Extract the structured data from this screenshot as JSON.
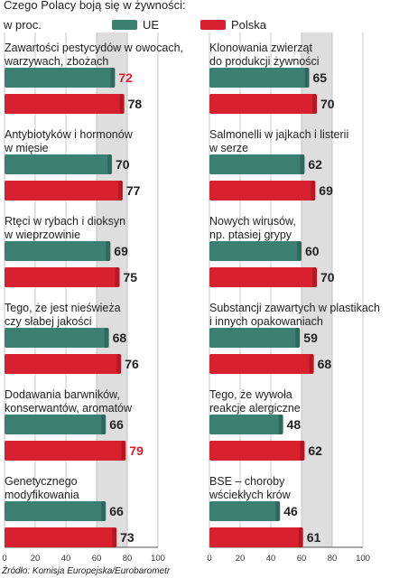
{
  "title": "Czego Polacy boją się w żywności:",
  "unit": "w proc.",
  "source": "Źródło: Komisja Europejska/Eurobarometr",
  "legend": [
    {
      "label": "UE",
      "color": "#3d7f70"
    },
    {
      "label": "Polska",
      "color": "#d8202e"
    }
  ],
  "colors": {
    "ue": "#3d7f70",
    "pl": "#d8202e",
    "highlight": "#d8202e",
    "band": "#dedede",
    "grid": "#bdbdbd"
  },
  "axis_ticks": [
    "0",
    "20",
    "40",
    "60",
    "80",
    "100"
  ],
  "chart_data": {
    "type": "bar",
    "orientation": "horizontal",
    "xlim": [
      0,
      100
    ],
    "series_names": [
      "UE",
      "Polska"
    ],
    "panels": [
      {
        "column": "left",
        "items": [
          {
            "label": [
              "Zawartości pestycydów w owocach,",
              "warzywach, zbożach"
            ],
            "ue": 72,
            "pl": 78,
            "highlight": "ue"
          },
          {
            "label": [
              "Antybiotyków i hormonów",
              "w mięsie"
            ],
            "ue": 70,
            "pl": 77,
            "highlight": null
          },
          {
            "label": [
              "Rtęci w rybach i dioksyn",
              "w wieprzowinie"
            ],
            "ue": 69,
            "pl": 75,
            "highlight": null
          },
          {
            "label": [
              "Tego, że jest nieświeża",
              "czy słabej jakości"
            ],
            "ue": 68,
            "pl": 76,
            "highlight": null
          },
          {
            "label": [
              "Dodawania barwników,",
              "konserwantów, aromatów"
            ],
            "ue": 66,
            "pl": 79,
            "highlight": "pl"
          },
          {
            "label": [
              "Genetycznego",
              "modyfikowania"
            ],
            "ue": 66,
            "pl": 73,
            "highlight": null
          }
        ]
      },
      {
        "column": "right",
        "items": [
          {
            "label": [
              "Klonowania zwierząt",
              "do produkcji żywności"
            ],
            "ue": 65,
            "pl": 70,
            "highlight": null
          },
          {
            "label": [
              "Salmonelli w jajkach i listerii",
              "w serze"
            ],
            "ue": 62,
            "pl": 69,
            "highlight": null
          },
          {
            "label": [
              "Nowych wirusów,",
              "np. ptasiej grypy"
            ],
            "ue": 60,
            "pl": 70,
            "highlight": null
          },
          {
            "label": [
              "Substancji zawartych w plastikach",
              "i innych opakowaniach"
            ],
            "ue": 59,
            "pl": 68,
            "highlight": null
          },
          {
            "label": [
              "Tego, że wywoła",
              "reakcje alergiczne"
            ],
            "ue": 48,
            "pl": 62,
            "highlight": null
          },
          {
            "label": [
              "BSE – choroby",
              "wściekłych krów"
            ],
            "ue": 46,
            "pl": 61,
            "highlight": null
          }
        ]
      }
    ]
  }
}
